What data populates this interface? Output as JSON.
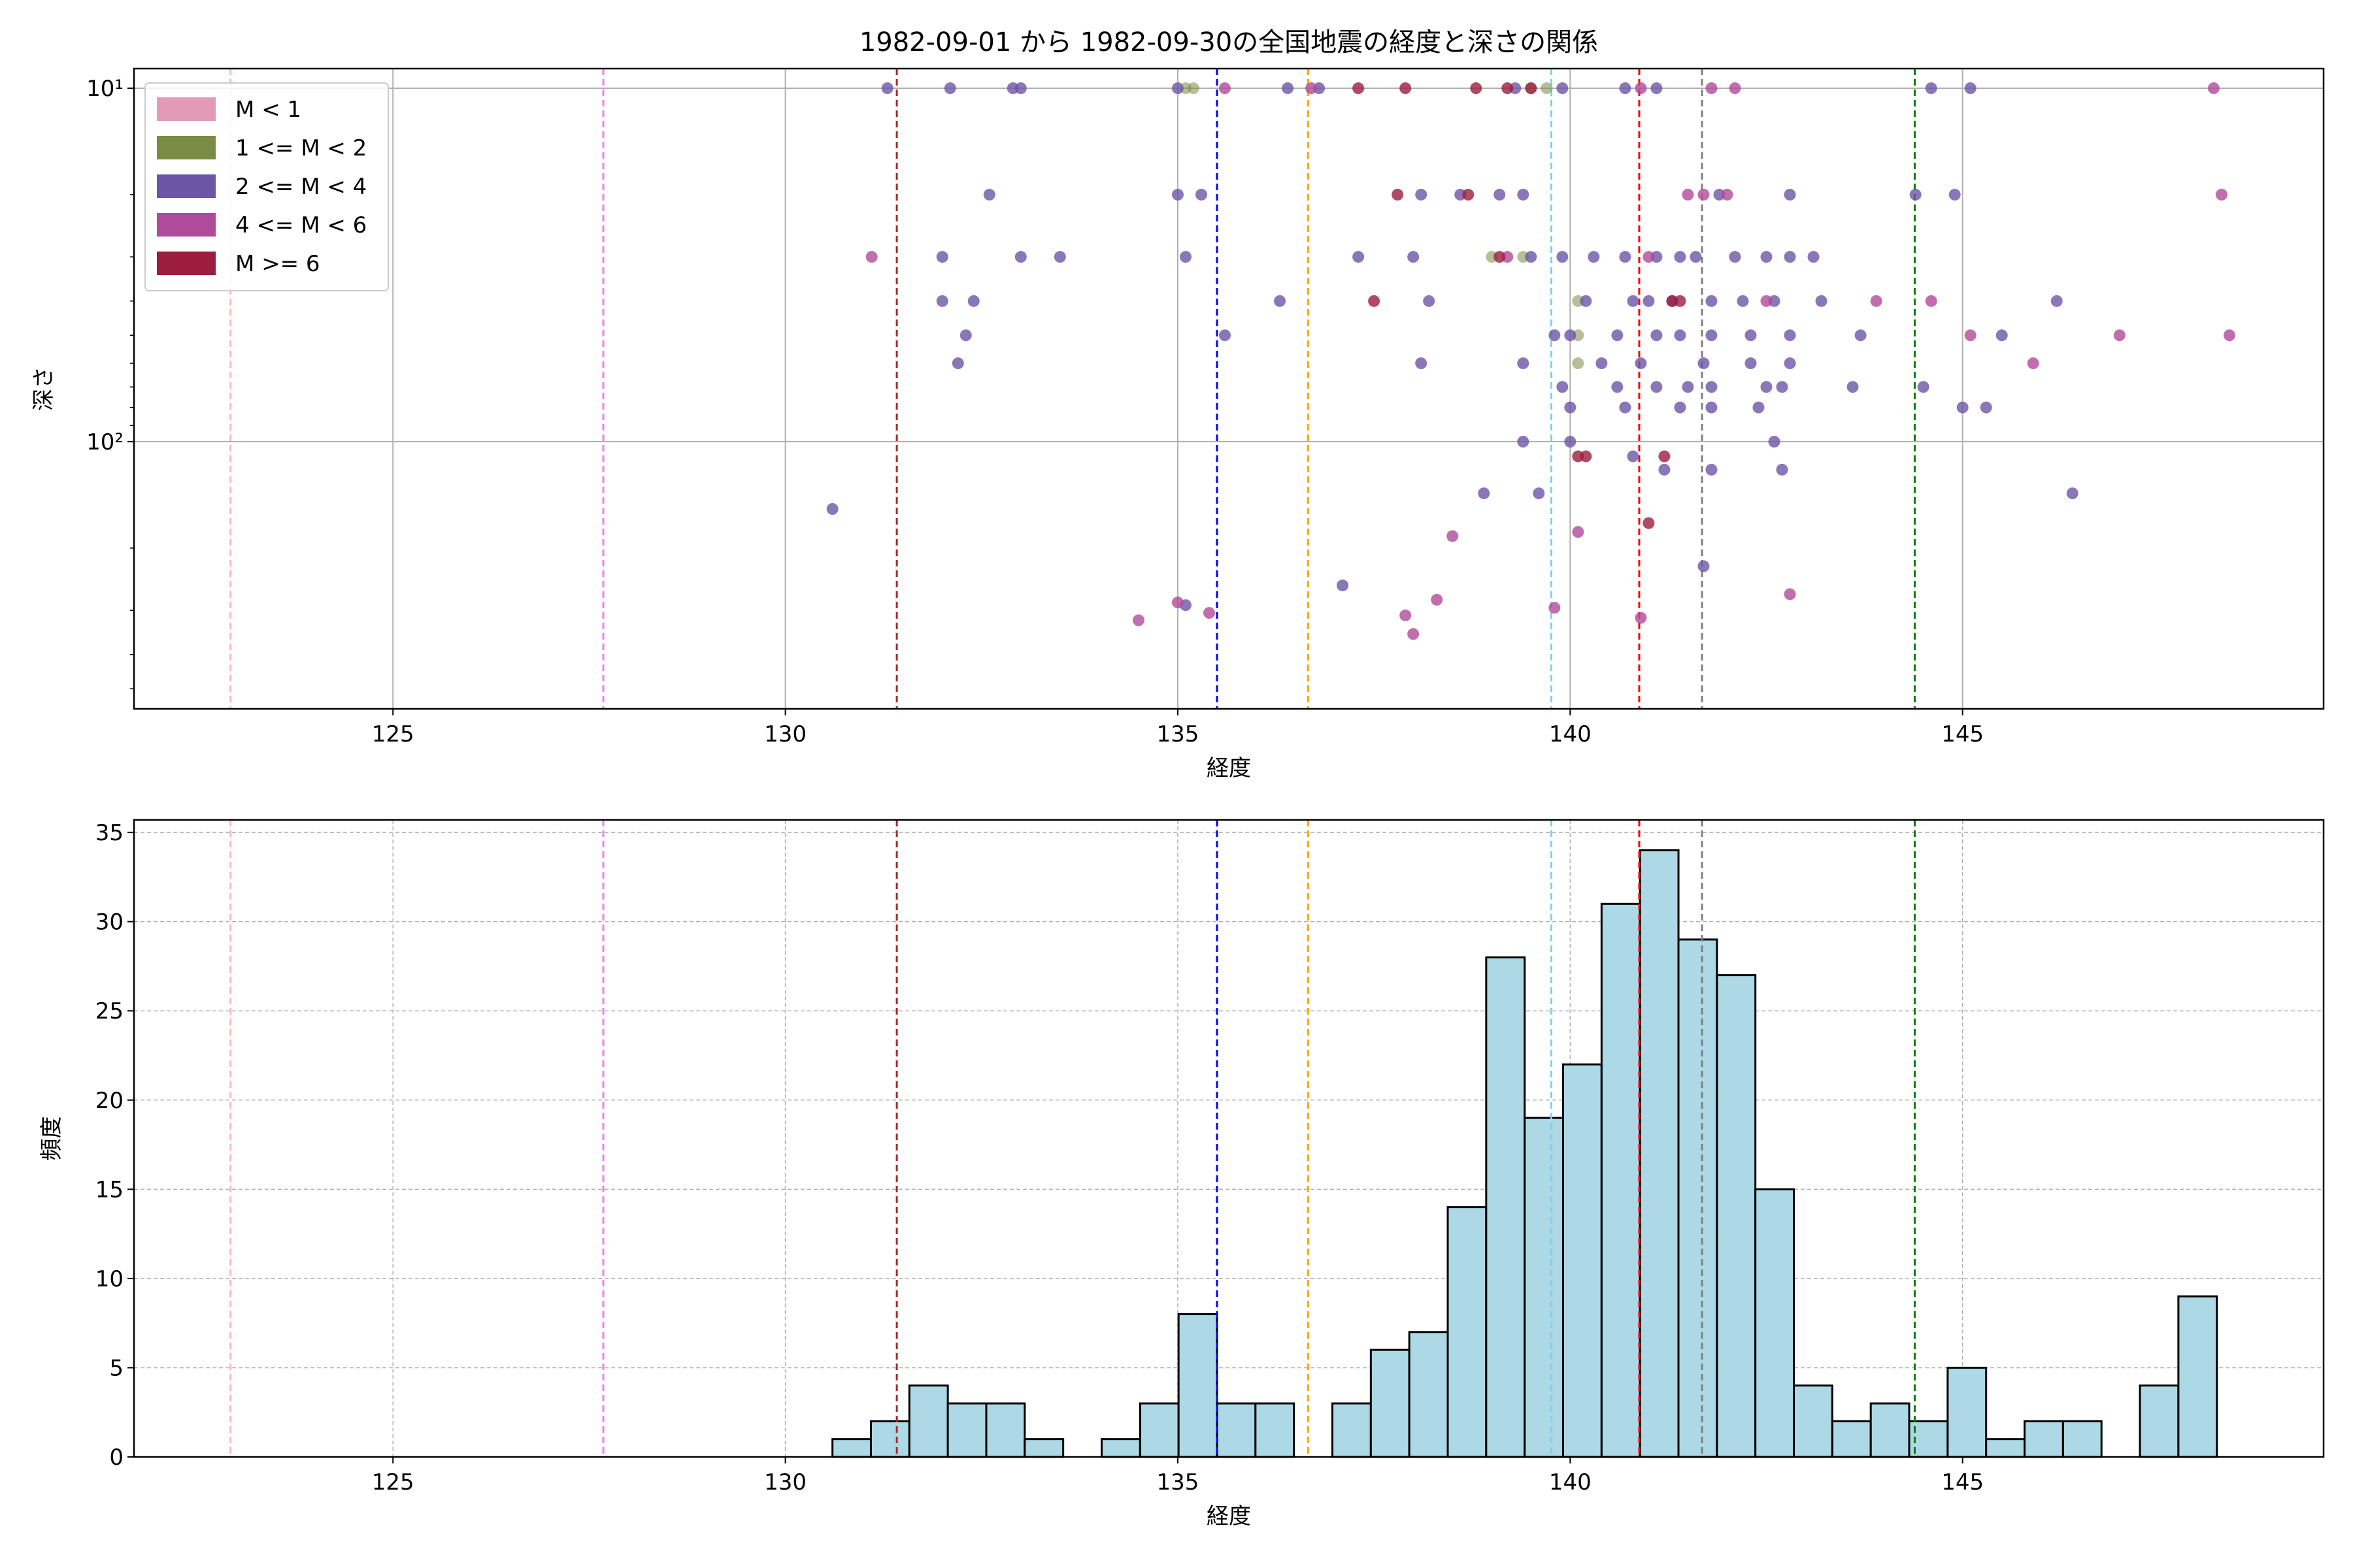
{
  "title": "1982-09-01 から 1982-09-30の全国地震の経度と深さの関係",
  "colors": {
    "m_lt1": "#e39bb5",
    "m_1_2": "#7a8c43",
    "m_2_4": "#6d55a6",
    "m_4_6": "#b04a9a",
    "m_ge6": "#9c1d3e",
    "hist_fill": "#add8e6",
    "hist_edge": "#000000",
    "grid": "#b0b0b0"
  },
  "reference_lines": [
    {
      "x": 122.93,
      "color": "#ffb6c1"
    },
    {
      "x": 127.68,
      "color": "#ee82ee"
    },
    {
      "x": 131.42,
      "color": "#a52a2a"
    },
    {
      "x": 135.5,
      "color": "#0000ff"
    },
    {
      "x": 136.66,
      "color": "#ffa500"
    },
    {
      "x": 139.76,
      "color": "#7fd3e3"
    },
    {
      "x": 140.88,
      "color": "#ff0000"
    },
    {
      "x": 141.68,
      "color": "#808080"
    },
    {
      "x": 144.39,
      "color": "#008000"
    }
  ],
  "chart_data": [
    {
      "type": "scatter",
      "title": "1982-09-01 から 1982-09-30の全国地震の経度と深さの関係",
      "xlabel": "経度",
      "ylabel": "深さ",
      "xlim": [
        121.7,
        149.6
      ],
      "ylim": [
        570,
        8.8
      ],
      "yscale": "log",
      "y_inverted": true,
      "xticks": [
        125,
        130,
        135,
        140,
        145
      ],
      "yticks": [
        {
          "value": 10,
          "label": "10¹"
        },
        {
          "value": 100,
          "label": "10²"
        }
      ],
      "grid": true,
      "legend": "top-left",
      "series": [
        {
          "name": "M < 1",
          "colorKey": "m_lt1",
          "points": []
        },
        {
          "name": "1 <= M < 2",
          "colorKey": "m_1_2",
          "points": [
            [
              135.1,
              10
            ],
            [
              135.2,
              10
            ],
            [
              139.5,
              10
            ],
            [
              139.7,
              10
            ],
            [
              140.1,
              40
            ],
            [
              140.1,
              50
            ],
            [
              140.1,
              60
            ],
            [
              139.0,
              30
            ],
            [
              139.4,
              30
            ]
          ]
        },
        {
          "name": "2 <= M < 4",
          "colorKey": "m_2_4",
          "points": [
            [
              131.3,
              10
            ],
            [
              132.1,
              10
            ],
            [
              132.9,
              10
            ],
            [
              133.0,
              10
            ],
            [
              135.0,
              10
            ],
            [
              136.4,
              10
            ],
            [
              136.8,
              10
            ],
            [
              139.3,
              10
            ],
            [
              139.9,
              10
            ],
            [
              140.7,
              10
            ],
            [
              141.1,
              10
            ],
            [
              144.6,
              10
            ],
            [
              145.1,
              10
            ],
            [
              132.6,
              20
            ],
            [
              135.0,
              20
            ],
            [
              135.3,
              20
            ],
            [
              138.1,
              20
            ],
            [
              138.6,
              20
            ],
            [
              139.1,
              20
            ],
            [
              139.4,
              20
            ],
            [
              141.9,
              20
            ],
            [
              142.8,
              20
            ],
            [
              144.4,
              20
            ],
            [
              144.9,
              20
            ],
            [
              132.0,
              30
            ],
            [
              133.0,
              30
            ],
            [
              133.5,
              30
            ],
            [
              135.1,
              30
            ],
            [
              137.3,
              30
            ],
            [
              138.0,
              30
            ],
            [
              139.5,
              30
            ],
            [
              139.9,
              30
            ],
            [
              140.3,
              30
            ],
            [
              140.7,
              30
            ],
            [
              141.1,
              30
            ],
            [
              141.4,
              30
            ],
            [
              141.6,
              30
            ],
            [
              142.1,
              30
            ],
            [
              142.5,
              30
            ],
            [
              142.8,
              30
            ],
            [
              143.1,
              30
            ],
            [
              132.0,
              40
            ],
            [
              132.4,
              40
            ],
            [
              136.3,
              40
            ],
            [
              138.2,
              40
            ],
            [
              140.2,
              40
            ],
            [
              140.8,
              40
            ],
            [
              141.0,
              40
            ],
            [
              141.3,
              40
            ],
            [
              141.8,
              40
            ],
            [
              142.2,
              40
            ],
            [
              142.6,
              40
            ],
            [
              143.2,
              40
            ],
            [
              146.2,
              40
            ],
            [
              132.3,
              50
            ],
            [
              135.6,
              50
            ],
            [
              139.8,
              50
            ],
            [
              140.0,
              50
            ],
            [
              140.6,
              50
            ],
            [
              141.1,
              50
            ],
            [
              141.4,
              50
            ],
            [
              141.8,
              50
            ],
            [
              142.3,
              50
            ],
            [
              142.8,
              50
            ],
            [
              143.7,
              50
            ],
            [
              145.5,
              50
            ],
            [
              132.2,
              60
            ],
            [
              138.1,
              60
            ],
            [
              139.4,
              60
            ],
            [
              140.4,
              60
            ],
            [
              140.9,
              60
            ],
            [
              141.7,
              60
            ],
            [
              142.3,
              60
            ],
            [
              142.8,
              60
            ],
            [
              139.9,
              70
            ],
            [
              140.6,
              70
            ],
            [
              141.1,
              70
            ],
            [
              141.5,
              70
            ],
            [
              141.8,
              70
            ],
            [
              142.5,
              70
            ],
            [
              142.7,
              70
            ],
            [
              143.6,
              70
            ],
            [
              144.5,
              70
            ],
            [
              140.0,
              80
            ],
            [
              140.7,
              80
            ],
            [
              141.4,
              80
            ],
            [
              141.8,
              80
            ],
            [
              142.4,
              80
            ],
            [
              145.0,
              80
            ],
            [
              145.3,
              80
            ],
            [
              139.4,
              100
            ],
            [
              140.0,
              100
            ],
            [
              142.6,
              100
            ],
            [
              140.8,
              110
            ],
            [
              141.2,
              120
            ],
            [
              141.8,
              120
            ],
            [
              142.7,
              120
            ],
            [
              138.9,
              140
            ],
            [
              139.6,
              140
            ],
            [
              146.4,
              140
            ],
            [
              130.6,
              155
            ],
            [
              137.1,
              255
            ],
            [
              141.7,
              225
            ],
            [
              135.1,
              290
            ]
          ]
        },
        {
          "name": "4 <= M < 6",
          "colorKey": "m_4_6",
          "points": [
            [
              135.6,
              10
            ],
            [
              136.7,
              10
            ],
            [
              140.9,
              10
            ],
            [
              141.8,
              10
            ],
            [
              142.1,
              10
            ],
            [
              148.2,
              10
            ],
            [
              141.5,
              20
            ],
            [
              141.7,
              20
            ],
            [
              142.0,
              20
            ],
            [
              148.3,
              20
            ],
            [
              131.1,
              30
            ],
            [
              139.2,
              30
            ],
            [
              141.0,
              30
            ],
            [
              142.5,
              40
            ],
            [
              143.9,
              40
            ],
            [
              144.6,
              40
            ],
            [
              145.1,
              50
            ],
            [
              147.0,
              50
            ],
            [
              148.4,
              50
            ],
            [
              145.9,
              60
            ],
            [
              138.5,
              185
            ],
            [
              140.1,
              180
            ],
            [
              134.5,
              320
            ],
            [
              135.0,
              285
            ],
            [
              135.4,
              305
            ],
            [
              137.9,
              310
            ],
            [
              138.3,
              280
            ],
            [
              139.8,
              295
            ],
            [
              140.9,
              315
            ],
            [
              142.8,
              270
            ],
            [
              138.0,
              350
            ]
          ]
        },
        {
          "name": "M >= 6",
          "colorKey": "m_ge6",
          "points": [
            [
              137.3,
              10
            ],
            [
              137.9,
              10
            ],
            [
              138.8,
              10
            ],
            [
              139.2,
              10
            ],
            [
              139.5,
              10
            ],
            [
              137.8,
              20
            ],
            [
              138.7,
              20
            ],
            [
              139.1,
              30
            ],
            [
              137.5,
              40
            ],
            [
              141.3,
              40
            ],
            [
              141.4,
              40
            ],
            [
              140.1,
              110
            ],
            [
              140.2,
              110
            ],
            [
              141.2,
              110
            ],
            [
              141.0,
              170
            ]
          ]
        }
      ]
    },
    {
      "type": "bar",
      "xlabel": "経度",
      "ylabel": "頻度",
      "xlim": [
        121.7,
        149.6
      ],
      "ylim": [
        0,
        35.7
      ],
      "xticks": [
        125,
        130,
        135,
        140,
        145
      ],
      "yticks": [
        0,
        5,
        10,
        15,
        20,
        25,
        30,
        35
      ],
      "grid": true,
      "bin_start": 130.6,
      "bin_width": 0.49,
      "values": [
        1,
        2,
        4,
        3,
        3,
        1,
        0,
        1,
        3,
        8,
        3,
        3,
        0,
        3,
        6,
        7,
        14,
        28,
        19,
        22,
        31,
        34,
        29,
        27,
        15,
        4,
        2,
        3,
        2,
        5,
        1,
        2,
        2,
        0,
        4,
        9
      ]
    }
  ]
}
